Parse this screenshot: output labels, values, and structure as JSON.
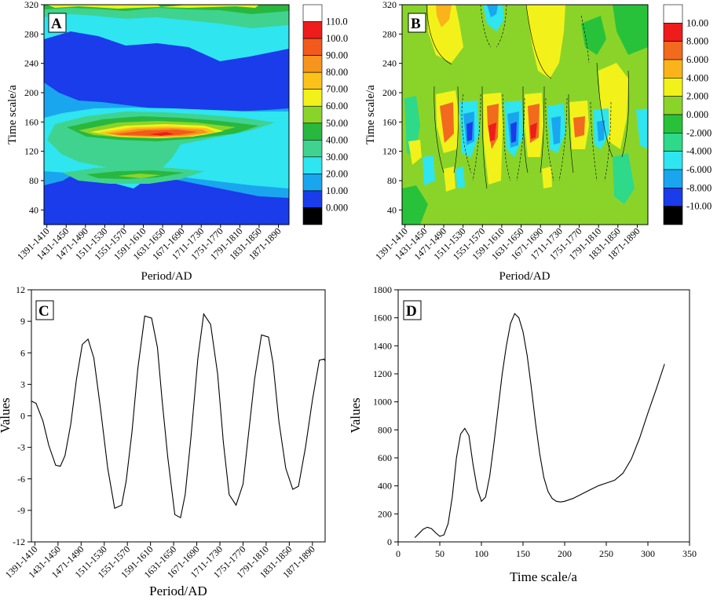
{
  "chart_data": [
    {
      "id": "A",
      "type": "heatmap",
      "panel_label": "A",
      "xlabel": "Period/AD",
      "ylabel": "Time scale/a",
      "x_tick_labels": [
        "1391-1410",
        "1431-1450",
        "1471-1490",
        "1511-1530",
        "1551-1570",
        "1591-1610",
        "1631-1650",
        "1671-1690",
        "1711-1730",
        "1751-1770",
        "1791-1810",
        "1831-1850",
        "1871-1890"
      ],
      "ylim": [
        20,
        320
      ],
      "y_ticks": [
        40,
        80,
        120,
        160,
        200,
        240,
        280,
        320
      ],
      "colorbar_labels": [
        "110.0",
        "100.0",
        "90.00",
        "80.00",
        "70.00",
        "60.00",
        "50.00",
        "40.00",
        "30.00",
        "20.00",
        "10.00",
        "0.000"
      ],
      "colorbar_colors": [
        "#ffffff",
        "#ee1c1c",
        "#f25a1d",
        "#f7941d",
        "#fbc21a",
        "#f2f21a",
        "#8ad42a",
        "#28b83e",
        "#3fd38f",
        "#2ee5f0",
        "#1aa6ef",
        "#1a3ceb",
        "#000000"
      ],
      "peak": {
        "x_index": 6.4,
        "y": 140,
        "value": 105
      }
    },
    {
      "id": "B",
      "type": "heatmap",
      "panel_label": "B",
      "xlabel": "Period/AD",
      "ylabel": "Time scale/a",
      "x_tick_labels": [
        "1391-1410",
        "1431-1450",
        "1471-1490",
        "1511-1530",
        "1551-1570",
        "1591-1610",
        "1631-1650",
        "1671-1690",
        "1711-1730",
        "1751-1770",
        "1791-1810",
        "1831-1850",
        "1871-1890"
      ],
      "ylim": [
        20,
        320
      ],
      "y_ticks": [
        40,
        80,
        120,
        160,
        200,
        240,
        280,
        320
      ],
      "colorbar_labels": [
        "10.00",
        "8.000",
        "6.000",
        "4.000",
        "2.000",
        "0.000",
        "-2.000",
        "-4.000",
        "-6.000",
        "-8.000",
        "-10.00"
      ],
      "colorbar_colors": [
        "#ffffff",
        "#ee1c1c",
        "#f26a1d",
        "#fbb31a",
        "#f2f21a",
        "#8ad42a",
        "#28c23a",
        "#2ed98a",
        "#2ee5f0",
        "#1aa6ef",
        "#1a3ceb",
        "#000000"
      ]
    },
    {
      "id": "C",
      "type": "line",
      "panel_label": "C",
      "xlabel": "Period/AD",
      "ylabel": "Values",
      "x_tick_labels": [
        "1391-1410",
        "1431-1450",
        "1471-1490",
        "1511-1530",
        "1551-1570",
        "1591-1610",
        "1631-1650",
        "1671-1690",
        "1711-1730",
        "1751-1770",
        "1791-1810",
        "1831-1850",
        "1871-1890"
      ],
      "ylim": [
        -12,
        12
      ],
      "y_ticks": [
        -12,
        -9,
        -6,
        -3,
        0,
        3,
        6,
        9,
        12
      ],
      "x_index": [
        -0.25,
        0.05,
        0.35,
        0.6,
        0.9,
        1.1,
        1.3,
        1.55,
        1.8,
        2.05,
        2.3,
        2.55,
        2.85,
        3.15,
        3.45,
        3.75,
        3.95,
        4.2,
        4.45,
        4.75,
        5.05,
        5.3,
        5.5,
        5.75,
        6.05,
        6.3,
        6.5,
        6.75,
        7.05,
        7.3,
        7.6,
        7.9,
        8.15,
        8.4,
        8.7,
        9.0,
        9.2,
        9.5,
        9.8,
        10.1,
        10.3,
        10.55,
        10.85,
        11.15,
        11.4,
        11.7,
        12.0,
        12.3,
        12.5,
        12.75
      ],
      "values": [
        1.5,
        1.2,
        -0.5,
        -2.8,
        -4.7,
        -4.8,
        -3.8,
        -0.8,
        3.5,
        6.8,
        7.3,
        5.5,
        0.5,
        -5,
        -8.8,
        -8.5,
        -6.2,
        -1.5,
        4.5,
        9.5,
        9.3,
        6.5,
        1.5,
        -4,
        -9.4,
        -9.7,
        -7.5,
        -2,
        5.5,
        9.7,
        8.7,
        4,
        -2.5,
        -7.5,
        -8.5,
        -6.5,
        -2.5,
        3.5,
        7.7,
        7.5,
        5,
        -0.5,
        -5,
        -7,
        -6.7,
        -3,
        1.5,
        5.3,
        5.4,
        4.5
      ]
    },
    {
      "id": "D",
      "type": "line",
      "panel_label": "D",
      "xlabel": "Time scale/a",
      "ylabel": "Values",
      "xlim": [
        0,
        350
      ],
      "x_ticks": [
        0,
        50,
        100,
        150,
        200,
        250,
        300,
        350
      ],
      "ylim": [
        0,
        1800
      ],
      "y_ticks": [
        0,
        200,
        400,
        600,
        800,
        1000,
        1200,
        1400,
        1600,
        1800
      ],
      "x": [
        20,
        25,
        30,
        35,
        40,
        45,
        50,
        55,
        60,
        65,
        70,
        75,
        80,
        85,
        90,
        95,
        100,
        105,
        110,
        115,
        120,
        125,
        130,
        135,
        140,
        145,
        150,
        155,
        160,
        165,
        170,
        175,
        180,
        185,
        190,
        195,
        200,
        210,
        220,
        230,
        240,
        250,
        260,
        270,
        280,
        290,
        300,
        310,
        320
      ],
      "values": [
        30,
        60,
        90,
        105,
        95,
        65,
        40,
        50,
        130,
        320,
        600,
        770,
        810,
        760,
        550,
        380,
        290,
        320,
        470,
        700,
        950,
        1200,
        1400,
        1560,
        1630,
        1600,
        1500,
        1330,
        1100,
        850,
        630,
        460,
        360,
        310,
        290,
        285,
        290,
        310,
        340,
        370,
        400,
        420,
        440,
        490,
        590,
        740,
        920,
        1090,
        1270
      ]
    }
  ]
}
